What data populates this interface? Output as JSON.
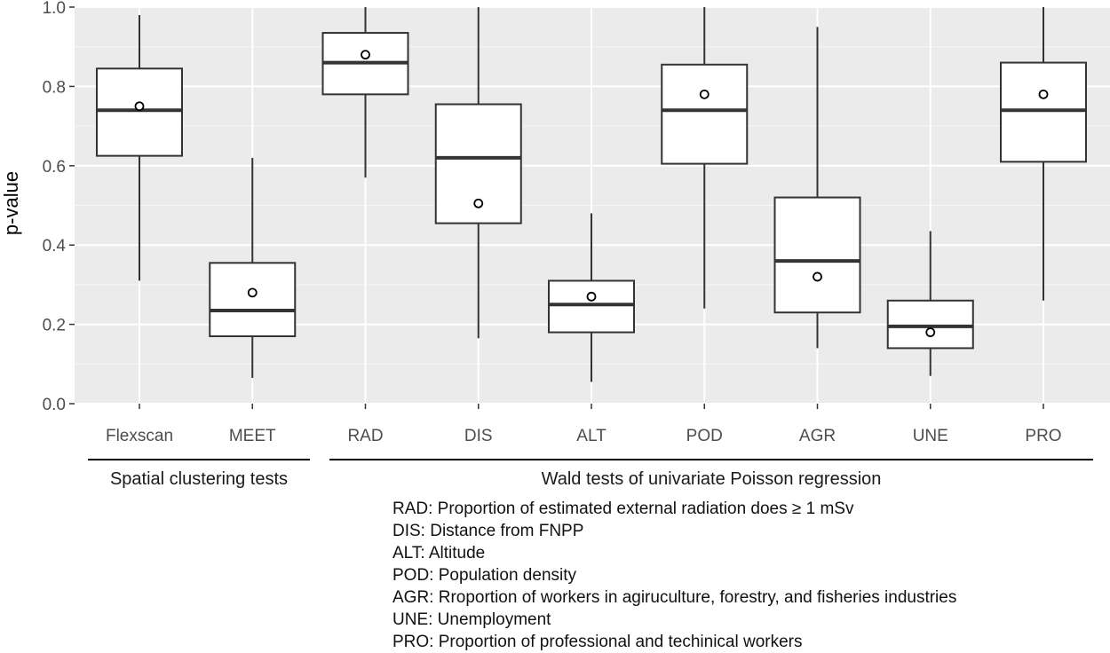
{
  "colors": {
    "panel": "#ebebeb",
    "grid_major": "#ffffff",
    "box_fill": "#ffffff",
    "box_line": "#333333",
    "median": "#333333",
    "group_rule": "#000000"
  },
  "chart_data": {
    "type": "boxplot",
    "ylabel": "p-value",
    "xlabel": "",
    "ylim": [
      0,
      1
    ],
    "yticks": [
      "0.0",
      "0.2",
      "0.4",
      "0.6",
      "0.8",
      "1.0"
    ],
    "mean_marker": "open-circle",
    "categories": [
      "Flexscan",
      "MEET",
      "RAD",
      "DIS",
      "ALT",
      "POD",
      "AGR",
      "UNE",
      "PRO"
    ],
    "boxes": [
      {
        "name": "Flexscan",
        "whisker_low": 0.31,
        "q1": 0.625,
        "median": 0.74,
        "q3": 0.845,
        "whisker_high": 0.98,
        "mean": 0.75
      },
      {
        "name": "MEET",
        "whisker_low": 0.065,
        "q1": 0.17,
        "median": 0.235,
        "q3": 0.355,
        "whisker_high": 0.62,
        "mean": 0.28
      },
      {
        "name": "RAD",
        "whisker_low": 0.57,
        "q1": 0.78,
        "median": 0.86,
        "q3": 0.935,
        "whisker_high": 1.0,
        "mean": 0.88
      },
      {
        "name": "DIS",
        "whisker_low": 0.165,
        "q1": 0.455,
        "median": 0.62,
        "q3": 0.755,
        "whisker_high": 1.0,
        "mean": 0.505
      },
      {
        "name": "ALT",
        "whisker_low": 0.055,
        "q1": 0.18,
        "median": 0.25,
        "q3": 0.31,
        "whisker_high": 0.48,
        "mean": 0.27
      },
      {
        "name": "POD",
        "whisker_low": 0.24,
        "q1": 0.605,
        "median": 0.74,
        "q3": 0.855,
        "whisker_high": 1.0,
        "mean": 0.78
      },
      {
        "name": "AGR",
        "whisker_low": 0.14,
        "q1": 0.23,
        "median": 0.36,
        "q3": 0.52,
        "whisker_high": 0.95,
        "mean": 0.32
      },
      {
        "name": "UNE",
        "whisker_low": 0.07,
        "q1": 0.14,
        "median": 0.195,
        "q3": 0.26,
        "whisker_high": 0.435,
        "mean": 0.18
      },
      {
        "name": "PRO",
        "whisker_low": 0.26,
        "q1": 0.61,
        "median": 0.74,
        "q3": 0.86,
        "whisker_high": 1.0,
        "mean": 0.78
      }
    ],
    "groups": [
      {
        "label": "Spatial clustering tests",
        "from": "Flexscan",
        "to": "MEET"
      },
      {
        "label": "Wald tests of univariate Poisson regression",
        "from": "RAD",
        "to": "PRO"
      }
    ],
    "legend_notes": [
      "RAD: Proportion of estimated external radiation does  ≥  1 mSv",
      "DIS: Distance from FNPP",
      "ALT: Altitude",
      "POD: Population density",
      "AGR: Rroportion of workers in agiruculture, forestry, and fisheries industries",
      "UNE: Unemployment",
      "PRO: Proportion of professional and techinical workers"
    ]
  }
}
